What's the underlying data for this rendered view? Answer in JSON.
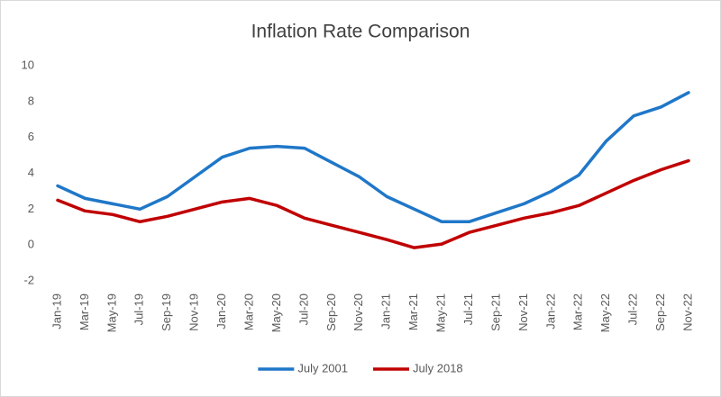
{
  "chart_data": {
    "type": "line",
    "title": "Inflation Rate Comparison",
    "categories": [
      "Jan-19",
      "Mar-19",
      "May-19",
      "Jul-19",
      "Sep-19",
      "Nov-19",
      "Jan-20",
      "Mar-20",
      "May-20",
      "Jul-20",
      "Sep-20",
      "Nov-20",
      "Jan-21",
      "Mar-21",
      "May-21",
      "Jul-21",
      "Sep-21",
      "Nov-21",
      "Jan-22",
      "Mar-22",
      "May-22",
      "Jul-22",
      "Sep-22",
      "Nov-22"
    ],
    "series": [
      {
        "name": "July 2001",
        "color": "#1f77c8",
        "values": [
          3.3,
          2.6,
          2.3,
          2.0,
          2.7,
          3.8,
          4.9,
          5.4,
          5.5,
          5.4,
          4.6,
          3.8,
          2.7,
          2.0,
          1.3,
          1.3,
          1.8,
          2.3,
          3.0,
          3.9,
          5.8,
          7.2,
          7.7,
          8.5
        ]
      },
      {
        "name": "July 2018",
        "color": "#c00000",
        "values": [
          2.5,
          1.9,
          1.7,
          1.3,
          1.6,
          2.0,
          2.4,
          2.6,
          2.2,
          1.5,
          1.1,
          0.7,
          0.3,
          -0.15,
          0.05,
          0.7,
          1.1,
          1.5,
          1.8,
          2.2,
          2.9,
          3.6,
          4.2,
          4.7
        ]
      }
    ],
    "ylim": [
      -2,
      10
    ],
    "yticks": [
      -2,
      0,
      2,
      4,
      6,
      8,
      10
    ],
    "grid": false,
    "legend": "bottom"
  }
}
